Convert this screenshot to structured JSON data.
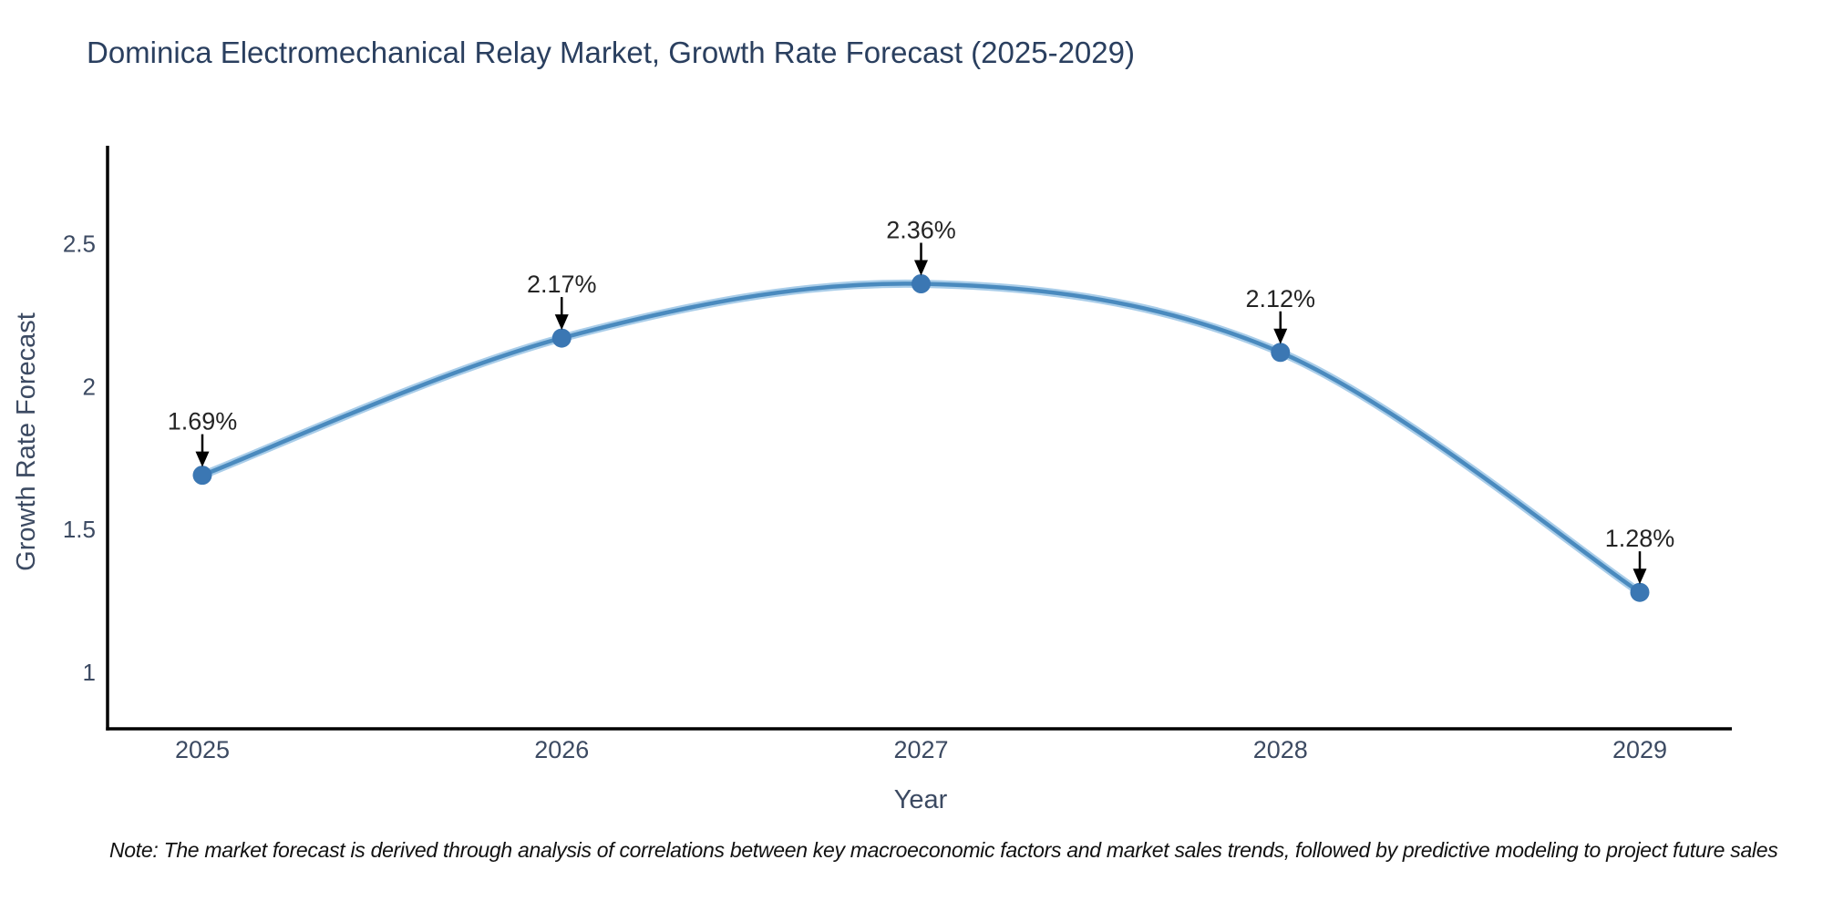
{
  "title": "Dominica Electromechanical Relay Market, Growth Rate Forecast (2025-2029)",
  "note": "Note: The market forecast is derived through analysis of correlations between key macroeconomic factors and market sales trends, followed by predictive modeling to project future sales",
  "colors": {
    "background": "#ffffff",
    "title_text": "#2a3f5f",
    "axis_text": "#3c4a62",
    "axis_line": "#000000",
    "series_line": "#4a8abe",
    "series_line_halo": "#a9cde9",
    "marker_fill": "#3b77b3",
    "annotation_text": "#242424",
    "annotation_arrow": "#000000"
  },
  "chart_data": {
    "type": "line",
    "title": "Dominica Electromechanical Relay Market, Growth Rate Forecast (2025-2029)",
    "categories": [
      "2025",
      "2026",
      "2027",
      "2028",
      "2029"
    ],
    "x": [
      2025,
      2026,
      2027,
      2028,
      2029
    ],
    "values": [
      1.69,
      2.17,
      2.36,
      2.12,
      1.28
    ],
    "point_labels": [
      "1.69%",
      "2.17%",
      "2.36%",
      "2.12%",
      "1.28%"
    ],
    "series_name": "Growth Rate Forecast",
    "xlabel": "Year",
    "ylabel": "Growth Rate Forecast",
    "yticks": [
      1,
      1.5,
      2,
      2.5
    ],
    "ytick_labels": [
      "1",
      "1.5",
      "2",
      "2.5"
    ],
    "ylim": [
      0.8,
      2.85
    ],
    "grid": false,
    "legend_shown": false,
    "line_shape": "spline",
    "markers": true,
    "annotation_style": "value-label-with-down-arrow"
  }
}
